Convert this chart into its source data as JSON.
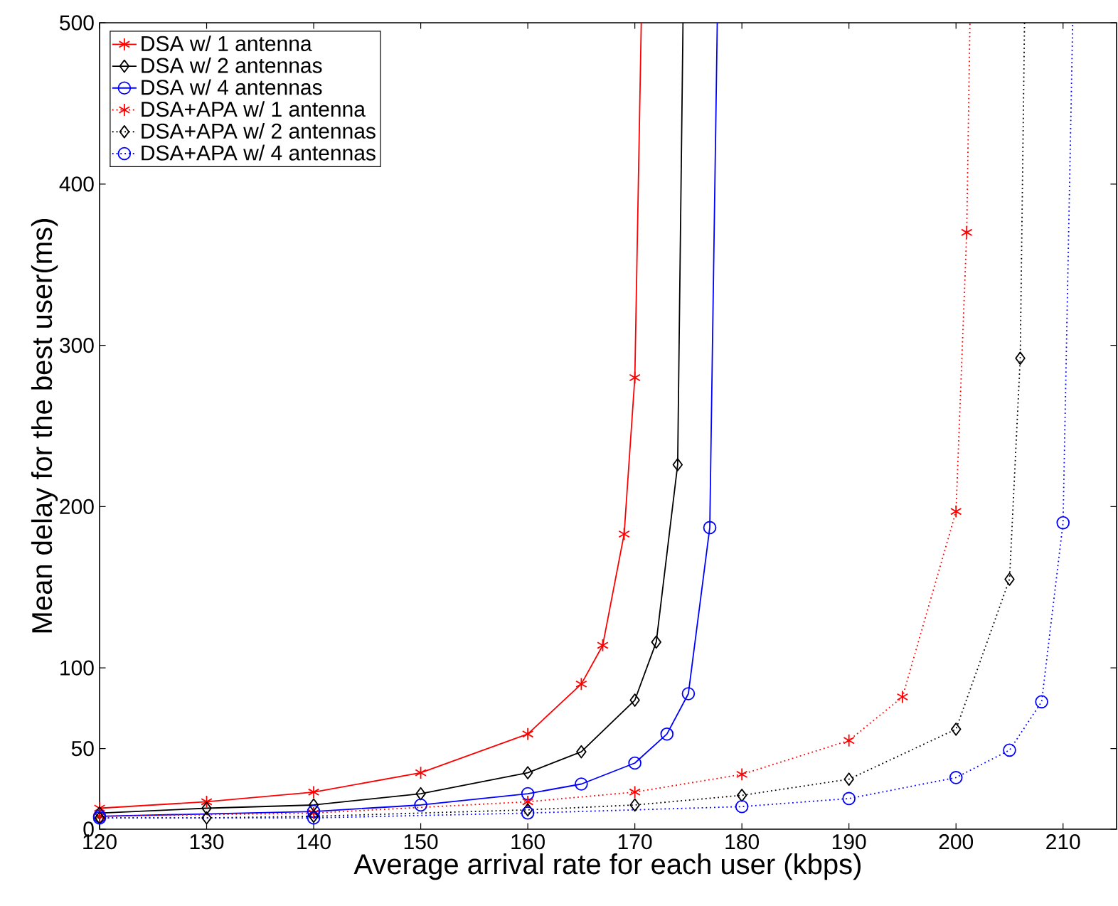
{
  "chart_data": {
    "type": "line",
    "xlabel": "Average arrival rate for each user (kbps)",
    "ylabel": "Mean delay for the best user(ms)",
    "xlim": [
      120,
      215
    ],
    "ylim": [
      0,
      500
    ],
    "xticks": [
      120,
      130,
      140,
      150,
      160,
      170,
      180,
      190,
      200,
      210
    ],
    "yticks": [
      0,
      50,
      100,
      200,
      300,
      400,
      500
    ],
    "grid": false,
    "legend": "top left",
    "series": [
      {
        "name": "DSA w/ 1 antenna",
        "color": "#ff0000",
        "marker": "cross",
        "line_style": "solid",
        "x": [
          120,
          130,
          140,
          150,
          160,
          165,
          167,
          169,
          170,
          170.6
        ],
        "values": [
          13,
          17,
          23,
          35,
          59,
          90,
          114,
          183,
          280,
          500
        ]
      },
      {
        "name": "DSA w/ 2 antennas",
        "color": "#000000",
        "marker": "diamond",
        "line_style": "solid",
        "x": [
          120,
          130,
          140,
          150,
          160,
          165,
          170,
          172,
          174,
          174.5
        ],
        "values": [
          10,
          13,
          15,
          22,
          35,
          48,
          80,
          116,
          226,
          500
        ]
      },
      {
        "name": "DSA w/ 4 antennas",
        "color": "#0000ff",
        "marker": "circle",
        "line_style": "solid",
        "x": [
          120,
          140,
          150,
          160,
          165,
          170,
          173,
          175,
          177,
          177.7
        ],
        "values": [
          8,
          11,
          15,
          22,
          28,
          41,
          59,
          84,
          187,
          500
        ]
      },
      {
        "name": "DSA+APA w/ 1 antenna",
        "color": "#ff0000",
        "marker": "cross",
        "line_style": "dotted",
        "x": [
          120,
          140,
          160,
          170,
          180,
          190,
          195,
          200,
          201,
          201.3
        ],
        "values": [
          8,
          10,
          17,
          23,
          34,
          55,
          82,
          197,
          370,
          500
        ]
      },
      {
        "name": "DSA+APA w/ 2 antennas",
        "color": "#000000",
        "marker": "diamond",
        "line_style": "dotted",
        "x": [
          120,
          130,
          140,
          160,
          170,
          180,
          190,
          200,
          205,
          206,
          206.4
        ],
        "values": [
          7,
          7,
          8,
          12,
          15,
          21,
          31,
          62,
          155,
          292,
          500
        ]
      },
      {
        "name": "DSA+APA w/ 4 antennas",
        "color": "#0000ff",
        "marker": "circle",
        "line_style": "dotted",
        "x": [
          120,
          140,
          160,
          180,
          190,
          200,
          205,
          208,
          210,
          210.9
        ],
        "values": [
          7,
          7,
          10,
          14,
          19,
          32,
          49,
          79,
          190,
          500
        ]
      }
    ]
  }
}
